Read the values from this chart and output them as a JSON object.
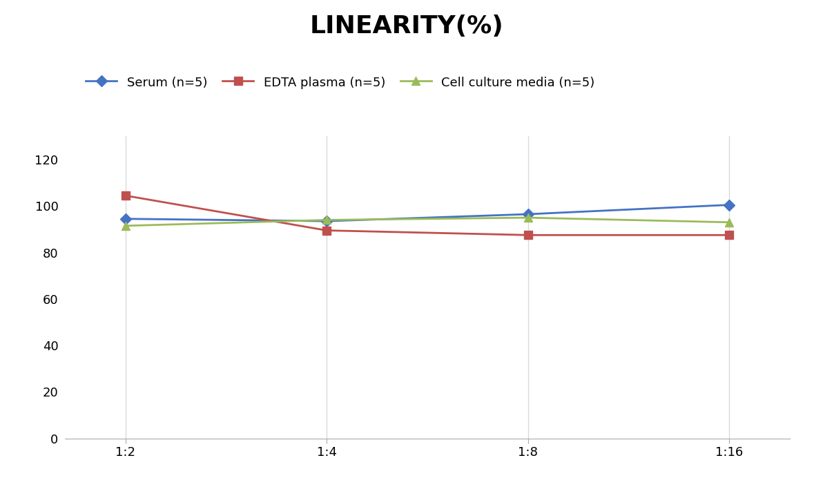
{
  "title": "LINEARITY(%)",
  "title_fontsize": 26,
  "title_fontweight": "bold",
  "x_labels": [
    "1:2",
    "1:4",
    "1:8",
    "1:16"
  ],
  "serum": {
    "label": "Serum (n=5)",
    "values": [
      94.5,
      93.5,
      96.5,
      100.5
    ],
    "color": "#4472C4",
    "marker": "D",
    "markersize": 8
  },
  "edta": {
    "label": "EDTA plasma (n=5)",
    "values": [
      104.5,
      89.5,
      87.5,
      87.5
    ],
    "color": "#C0504D",
    "marker": "s",
    "markersize": 8
  },
  "cell": {
    "label": "Cell culture media (n=5)",
    "values": [
      91.5,
      94.0,
      95.0,
      93.0
    ],
    "color": "#9BBB59",
    "marker": "^",
    "markersize": 9
  },
  "ylim": [
    0,
    130
  ],
  "yticks": [
    0,
    20,
    40,
    60,
    80,
    100,
    120
  ],
  "grid_color": "#D9D9D9",
  "background_color": "#FFFFFF",
  "legend_fontsize": 13,
  "tick_fontsize": 13,
  "linewidth": 2.0
}
